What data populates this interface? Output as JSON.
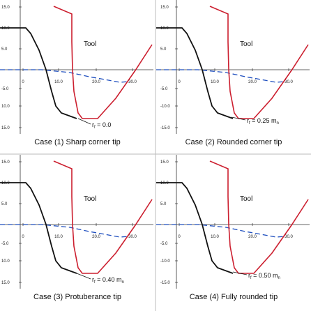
{
  "panels": [
    {
      "caption": "Case (1) Sharp corner tip",
      "tool_label": "Tool",
      "radius_label": {
        "symbol": "r",
        "sub": "f",
        "value": "= 0.0",
        "unit": "",
        "unit_sub": ""
      },
      "y_ticks": [
        "15.0",
        "10.0",
        "5.0",
        "-5.0",
        "10.0",
        "15.0"
      ],
      "x_ticks": [
        "0",
        "10.0",
        "20.0",
        "30.0"
      ]
    },
    {
      "caption": "Case (2) Rounded corner tip",
      "tool_label": "Tool",
      "radius_label": {
        "symbol": "r",
        "sub": "f",
        "value": "= 0.25",
        "unit": "m",
        "unit_sub": "n"
      },
      "y_ticks": [
        "15.0",
        "10.0",
        "5.0",
        "-5.0",
        "-10.0",
        "-15.0"
      ],
      "x_ticks": [
        "0",
        "10.0",
        "20.0",
        "30.0"
      ]
    },
    {
      "caption": "Case (3) Protuberance tip",
      "tool_label": "Tool",
      "radius_label": {
        "symbol": "r",
        "sub": "f",
        "value": "= 0.40",
        "unit": "m",
        "unit_sub": "n"
      },
      "y_ticks": [
        "15.0",
        "10.0",
        "5.0",
        "-5.0",
        "10.0",
        "15.0"
      ],
      "x_ticks": [
        "0",
        "10.0",
        "20.0",
        "30.0"
      ]
    },
    {
      "caption": "Case (4) Fully rounded tip",
      "tool_label": "Tool",
      "radius_label": {
        "symbol": "r",
        "sub": "f",
        "value": "= 0.50",
        "unit": "m",
        "unit_sub": "n"
      },
      "y_ticks": [
        "15.0",
        "10.0",
        "5.0",
        "-5.0",
        "-10.0",
        "-15.0"
      ],
      "x_ticks": [
        "0",
        "10.0",
        "20.0",
        "30.0"
      ]
    }
  ],
  "colors": {
    "tool_line": "#cc1f2f",
    "profile_line": "#111111",
    "dash_line": "#1f4fbf",
    "axis": "#333333",
    "divider": "#bbbbbb"
  }
}
